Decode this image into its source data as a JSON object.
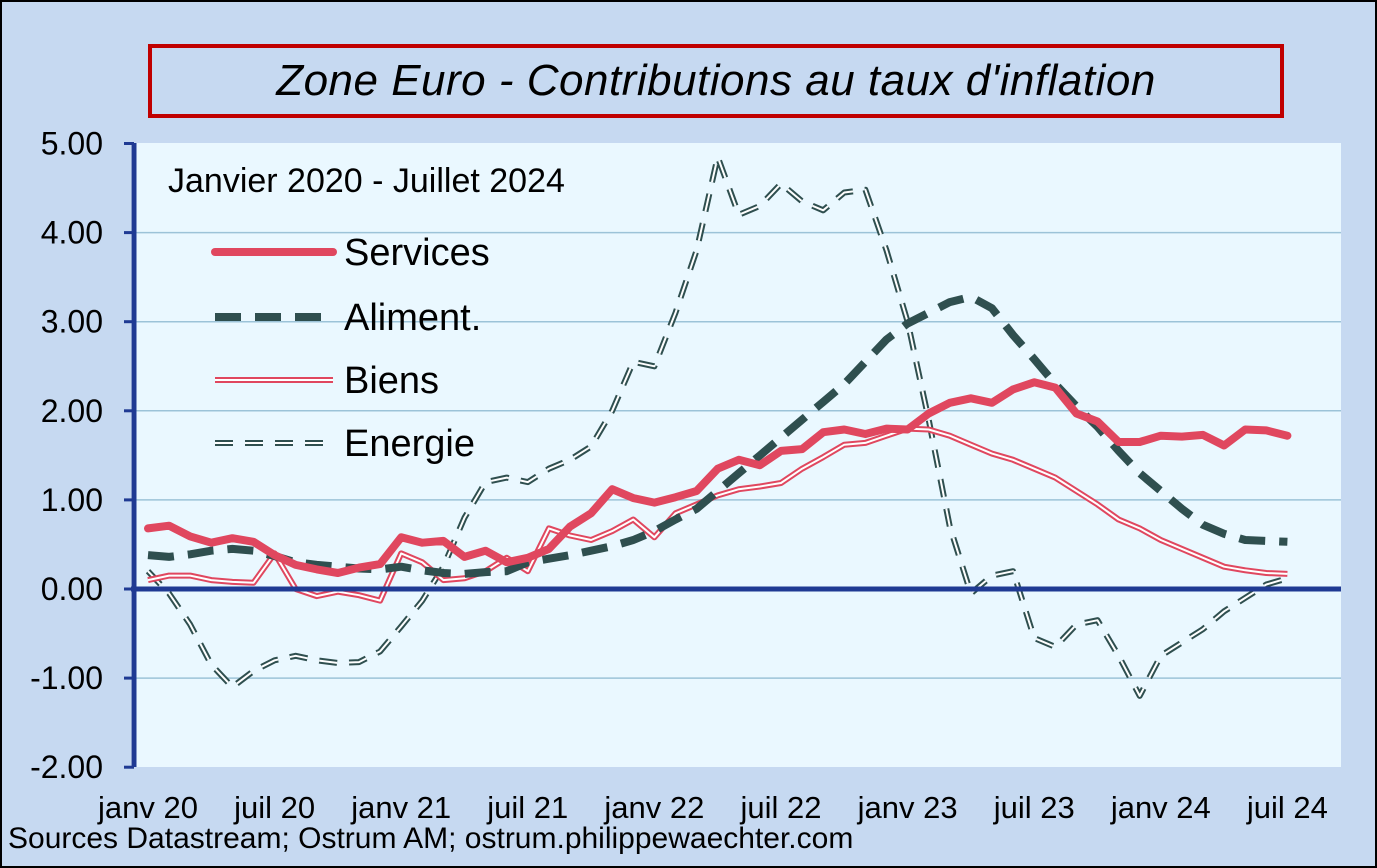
{
  "title": "Zone Euro - Contributions au taux d'inflation",
  "subtitle": "Janvier 2020 - Juillet 2024",
  "source": "Sources Datastream;  Ostrum AM; ostrum.philippewaechter.com",
  "colors": {
    "services": "#e0475f",
    "aliment": "#2f4f4f",
    "biens": "#e0475f",
    "energie": "#2f4f4f",
    "plot_bg": "#eaf8ff",
    "axis": "#1f3a93",
    "grid": "#9cc3d8"
  },
  "chart_data": {
    "type": "line",
    "ylim": [
      -2,
      5
    ],
    "yticks": [
      "5.00",
      "4.00",
      "3.00",
      "2.00",
      "1.00",
      "0.00",
      "-1.00",
      "-2.00"
    ],
    "ytick_values": [
      5,
      4,
      3,
      2,
      1,
      0,
      -1,
      -2
    ],
    "xticks": [
      "janv 20",
      "juil 20",
      "janv 21",
      "juil 21",
      "janv 22",
      "juil 22",
      "janv 23",
      "juil 23",
      "janv 24",
      "juil 24"
    ],
    "xtick_months": [
      0,
      6,
      12,
      18,
      24,
      30,
      36,
      42,
      48,
      54
    ],
    "grid": true,
    "legend_position": "top-left",
    "series": [
      {
        "name": "Services",
        "key": "services",
        "values": [
          0.68,
          0.71,
          0.59,
          0.52,
          0.57,
          0.53,
          0.38,
          0.27,
          0.22,
          0.18,
          0.24,
          0.28,
          0.58,
          0.52,
          0.54,
          0.36,
          0.43,
          0.3,
          0.35,
          0.45,
          0.7,
          0.85,
          1.12,
          1.02,
          0.97,
          1.03,
          1.1,
          1.35,
          1.45,
          1.39,
          1.55,
          1.57,
          1.76,
          1.79,
          1.74,
          1.8,
          1.79,
          1.97,
          2.09,
          2.14,
          2.09,
          2.24,
          2.32,
          2.26,
          1.97,
          1.88,
          1.65,
          1.65,
          1.72,
          1.71,
          1.73,
          1.61,
          1.79,
          1.78,
          1.72
        ]
      },
      {
        "name": "Aliment.",
        "key": "aliment",
        "values": [
          0.38,
          0.36,
          0.39,
          0.43,
          0.45,
          0.43,
          0.37,
          0.3,
          0.27,
          0.25,
          0.23,
          0.22,
          0.25,
          0.21,
          0.18,
          0.17,
          0.19,
          0.2,
          0.3,
          0.34,
          0.38,
          0.43,
          0.48,
          0.55,
          0.65,
          0.78,
          0.9,
          1.1,
          1.3,
          1.5,
          1.7,
          1.9,
          2.1,
          2.3,
          2.55,
          2.8,
          2.98,
          3.1,
          3.22,
          3.28,
          3.15,
          2.85,
          2.58,
          2.3,
          2.05,
          1.82,
          1.55,
          1.3,
          1.1,
          0.9,
          0.72,
          0.62,
          0.55,
          0.54,
          0.53
        ]
      },
      {
        "name": "Biens",
        "key": "biens",
        "values": [
          0.1,
          0.15,
          0.15,
          0.1,
          0.08,
          0.07,
          0.4,
          0.0,
          -0.08,
          -0.03,
          -0.07,
          -0.13,
          0.4,
          0.3,
          0.1,
          0.12,
          0.2,
          0.35,
          0.2,
          0.68,
          0.6,
          0.55,
          0.65,
          0.78,
          0.58,
          0.85,
          0.95,
          1.05,
          1.12,
          1.15,
          1.19,
          1.35,
          1.48,
          1.62,
          1.64,
          1.72,
          1.8,
          1.79,
          1.72,
          1.62,
          1.52,
          1.45,
          1.35,
          1.25,
          1.1,
          0.95,
          0.78,
          0.68,
          0.55,
          0.45,
          0.35,
          0.25,
          0.21,
          0.18,
          0.17
        ]
      },
      {
        "name": "Energie",
        "key": "energie",
        "values": [
          0.2,
          -0.05,
          -0.4,
          -0.85,
          -1.1,
          -0.92,
          -0.8,
          -0.75,
          -0.8,
          -0.83,
          -0.82,
          -0.7,
          -0.42,
          -0.13,
          0.25,
          0.8,
          1.2,
          1.25,
          1.2,
          1.35,
          1.45,
          1.6,
          2.0,
          2.55,
          2.5,
          3.1,
          3.8,
          4.85,
          4.2,
          4.3,
          4.55,
          4.35,
          4.25,
          4.45,
          4.48,
          3.8,
          3.0,
          1.9,
          0.7,
          -0.05,
          0.15,
          0.2,
          -0.55,
          -0.65,
          -0.4,
          -0.35,
          -0.75,
          -1.2,
          -0.75,
          -0.6,
          -0.45,
          -0.25,
          -0.1,
          0.05,
          0.12
        ]
      }
    ]
  }
}
